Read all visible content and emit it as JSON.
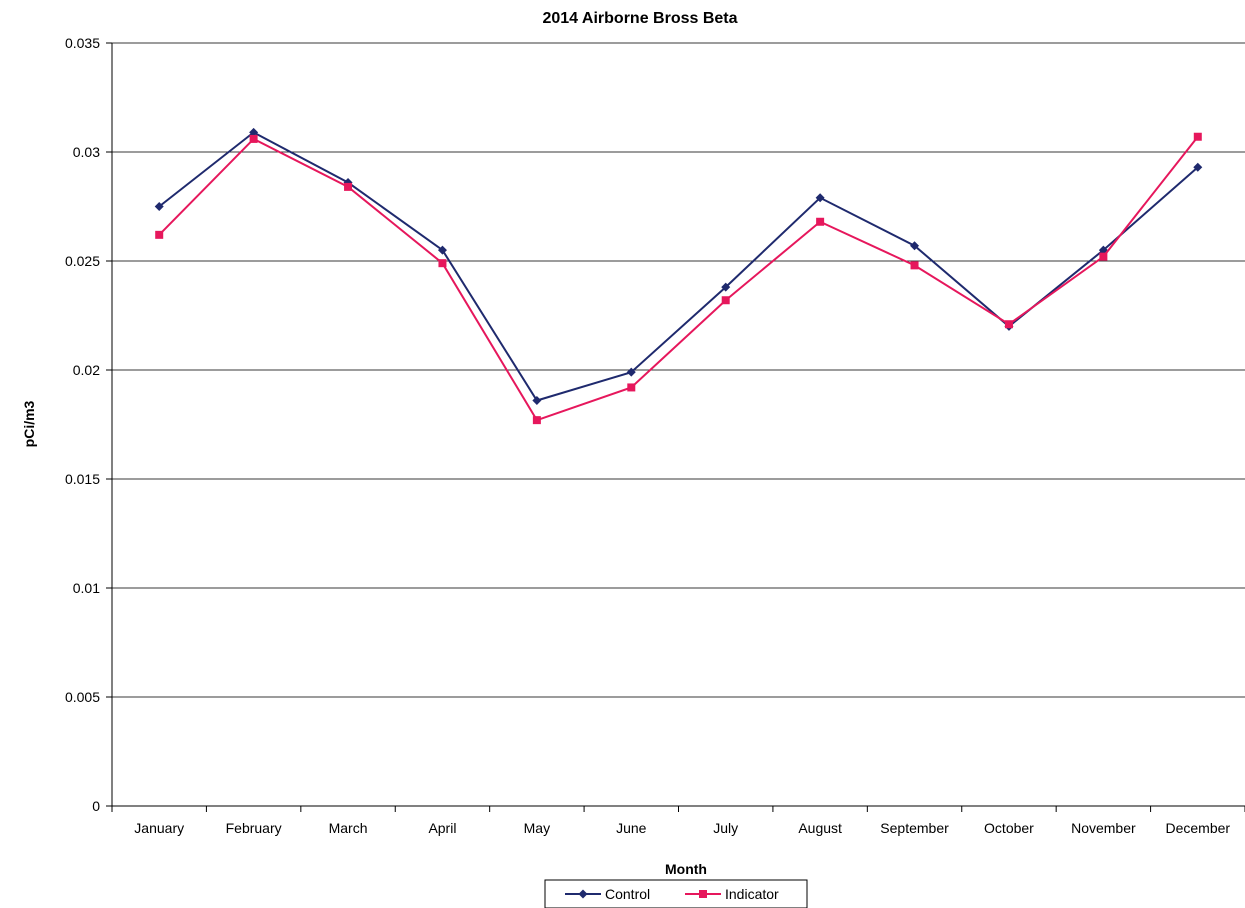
{
  "chart_data": {
    "type": "line",
    "title": "2014 Airborne Bross Beta",
    "xlabel": "Month",
    "ylabel": "pCi/m3",
    "categories": [
      "January",
      "February",
      "March",
      "April",
      "May",
      "June",
      "July",
      "August",
      "September",
      "October",
      "November",
      "December"
    ],
    "ylim": [
      0,
      0.035
    ],
    "yticks": [
      0,
      0.005,
      0.01,
      0.015,
      0.02,
      0.025,
      0.03,
      0.035
    ],
    "ytick_labels": [
      "0",
      "0.005",
      "0.01",
      "0.015",
      "0.02",
      "0.025",
      "0.03",
      "0.035"
    ],
    "grid": true,
    "legend_position": "bottom-center",
    "series": [
      {
        "name": "Control",
        "color": "#1f2a6e",
        "marker": "diamond",
        "values": [
          0.0275,
          0.0309,
          0.0286,
          0.0255,
          0.0186,
          0.0199,
          0.0238,
          0.0279,
          0.0257,
          0.022,
          0.0255,
          0.0293
        ]
      },
      {
        "name": "Indicator",
        "color": "#e6175c",
        "marker": "square",
        "values": [
          0.0262,
          0.0306,
          0.0284,
          0.0249,
          0.0177,
          0.0192,
          0.0232,
          0.0268,
          0.0248,
          0.0221,
          0.0252,
          0.0307
        ]
      }
    ]
  }
}
